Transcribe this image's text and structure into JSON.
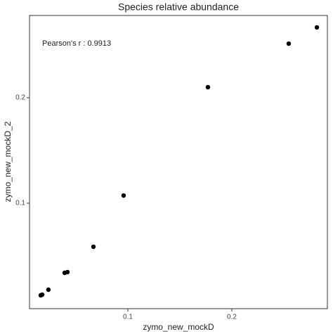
{
  "chart_data": {
    "type": "scatter",
    "title": "Species relative abundance",
    "x_label": "zymo_new_mockD",
    "y_label": "zymo_new_mockD_2",
    "annotation": "Pearson's r : 0.9913",
    "x": [
      0.0162,
      0.0176,
      0.0236,
      0.0392,
      0.0419,
      0.0669,
      0.0959,
      0.177,
      0.2547,
      0.2818
    ],
    "values": [
      0.0127,
      0.0133,
      0.018,
      0.034,
      0.0347,
      0.0587,
      0.1073,
      0.21,
      0.2513,
      0.2667
    ],
    "color": "#000000",
    "xlim": [
      0.0054,
      0.2919
    ],
    "ylim": [
      0,
      0.278
    ],
    "xticks": [
      0.1,
      0.2
    ],
    "yticks": [
      0.1,
      0.2
    ],
    "grid": false
  }
}
